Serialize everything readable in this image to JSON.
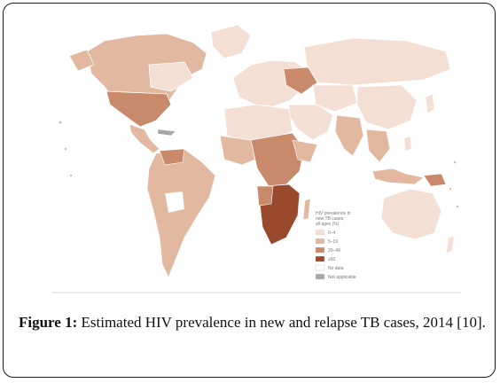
{
  "figure": {
    "label": "Figure 1:",
    "caption": " Estimated HIV prevalence in new and relapse TB cases, 2014 [10]."
  },
  "legend": {
    "title_lines": [
      "HIV prevalence in",
      "new TB cases,",
      "all ages (%)"
    ],
    "items": [
      {
        "label": "0–4",
        "color": "#f3dfd3"
      },
      {
        "label": "5–19",
        "color": "#e2b8a0"
      },
      {
        "label": "20–49",
        "color": "#c88a6b"
      },
      {
        "label": "≥50",
        "color": "#9a4a2c"
      },
      {
        "label": "No data",
        "color": "#ffffff"
      },
      {
        "label": "Not applicable",
        "color": "#a8a8a8"
      }
    ]
  },
  "colors": {
    "ocean": "#ffffff",
    "border": "#ffffff",
    "low": "#f3dfd3",
    "mid": "#e2b8a0",
    "high": "#c88a6b",
    "very_high": "#9a4a2c",
    "na": "#a8a8a8"
  }
}
